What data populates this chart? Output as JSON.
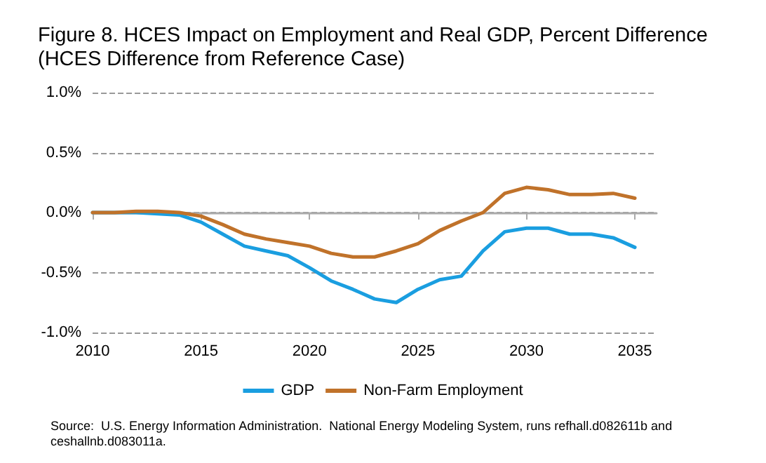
{
  "chart_data": {
    "type": "line",
    "title": "Figure 8. HCES Impact on Employment and Real GDP, Percent Difference\n(HCES Difference from Reference Case)",
    "x": [
      2010,
      2011,
      2012,
      2013,
      2014,
      2015,
      2016,
      2017,
      2018,
      2019,
      2020,
      2021,
      2022,
      2023,
      2024,
      2025,
      2026,
      2027,
      2028,
      2029,
      2030,
      2031,
      2032,
      2033,
      2034,
      2035
    ],
    "series": [
      {
        "name": "GDP",
        "color": "#1a9ee0",
        "values": [
          0,
          0,
          0,
          -0.01,
          -0.02,
          -0.08,
          -0.18,
          -0.28,
          -0.32,
          -0.36,
          -0.46,
          -0.57,
          -0.64,
          -0.72,
          -0.75,
          -0.64,
          -0.56,
          -0.53,
          -0.32,
          -0.16,
          -0.13,
          -0.13,
          -0.18,
          -0.18,
          -0.21,
          -0.29
        ]
      },
      {
        "name": "Non-Farm Employment",
        "color": "#c0722a",
        "values": [
          0,
          0,
          0.01,
          0.01,
          0,
          -0.03,
          -0.1,
          -0.18,
          -0.22,
          -0.25,
          -0.28,
          -0.34,
          -0.37,
          -0.37,
          -0.32,
          -0.26,
          -0.15,
          -0.07,
          0,
          0.16,
          0.21,
          0.19,
          0.15,
          0.15,
          0.16,
          0.12
        ]
      }
    ],
    "xlim": [
      2010,
      2036
    ],
    "xticks": [
      2010,
      2015,
      2020,
      2025,
      2030,
      2035
    ],
    "ylim": [
      -1,
      1
    ],
    "yticks": [
      {
        "value": -1,
        "label": "-1.0%"
      },
      {
        "value": -0.5,
        "label": "-0.5%"
      },
      {
        "value": 0,
        "label": "0.0%"
      },
      {
        "value": 0.5,
        "label": "0.5%"
      },
      {
        "value": 1,
        "label": "1.0%"
      }
    ],
    "grid": "y",
    "legend": "bottom",
    "marker": "none",
    "line_style": "solid",
    "annotations": [
      "Source:  U.S. Energy Information Administration.  National Energy Modeling System, runs refhall.d082611b and\nceshallnb.d083011a."
    ]
  }
}
